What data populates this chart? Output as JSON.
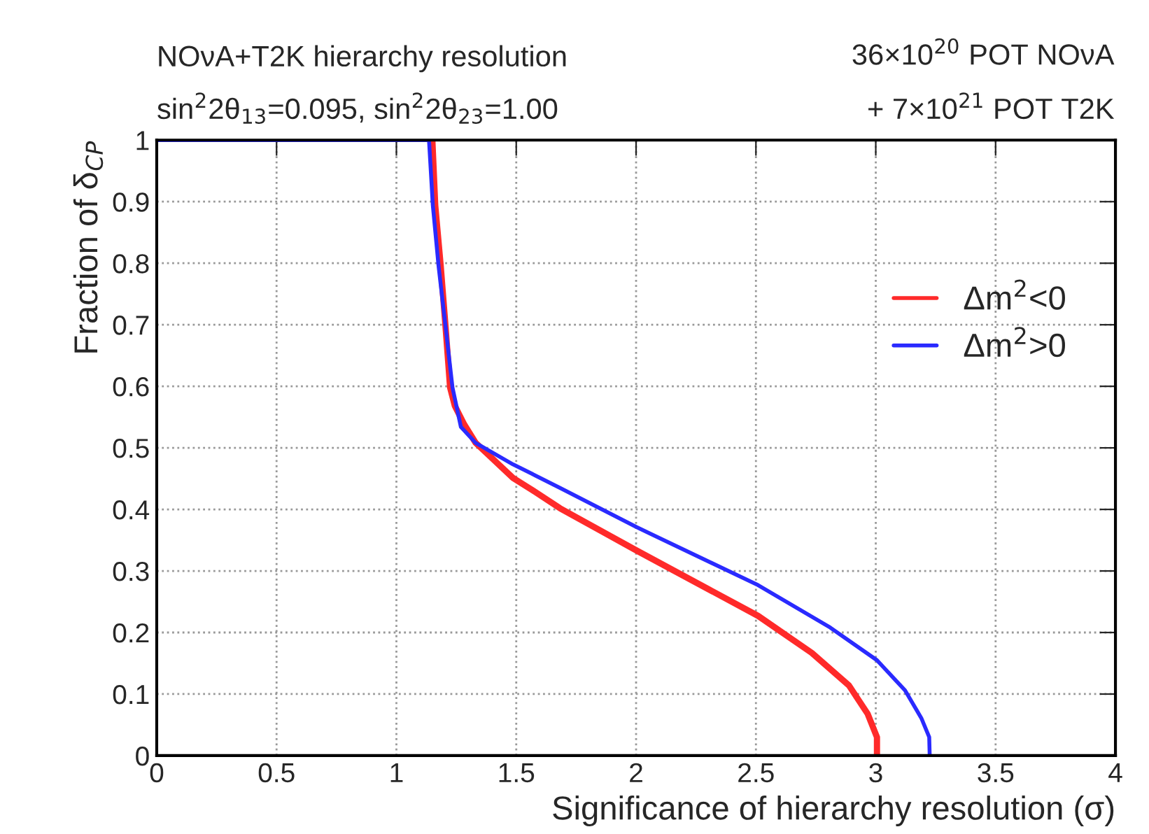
{
  "chart_data": {
    "type": "line",
    "title": "NOνA+T2K hierarchy resolution",
    "annotations": [
      "sin$^{2}$2θ$_{13}$=0.095, sin$^{2}$2θ$_{23}$=1.00",
      "36×10$^{20}$ POT NOνA",
      "+ 7×10$^{21}$ POT T2K"
    ],
    "xlabel": "Significance of hierarchy resolution (σ)",
    "ylabel": "Fraction of δ$_{CP}$",
    "series": [
      {
        "name": "Δm$^{2}$<0",
        "color": "#ff2a2a",
        "x": [
          1.15,
          1.162,
          1.185,
          1.205,
          1.224,
          1.244,
          1.283,
          1.331,
          1.487,
          1.565,
          1.682,
          2.003,
          2.509,
          2.733,
          2.888,
          2.966,
          3.005,
          3.005
        ],
        "values": [
          1.0,
          0.894,
          0.795,
          0.697,
          0.598,
          0.568,
          0.538,
          0.508,
          0.451,
          0.432,
          0.402,
          0.333,
          0.227,
          0.167,
          0.114,
          0.068,
          0.03,
          0.0
        ]
      },
      {
        "name": "Δm$^{2}$>0",
        "color": "#2a2aff",
        "x": [
          0.0,
          1.136,
          1.152,
          1.176,
          1.205,
          1.234,
          1.269,
          1.331,
          1.487,
          1.565,
          1.682,
          2.003,
          2.509,
          2.81,
          3.005,
          3.122,
          3.19,
          3.223,
          3.225
        ],
        "values": [
          1.0,
          1.0,
          0.894,
          0.795,
          0.697,
          0.598,
          0.534,
          0.508,
          0.473,
          0.458,
          0.435,
          0.371,
          0.277,
          0.208,
          0.155,
          0.106,
          0.061,
          0.03,
          0.0
        ]
      }
    ],
    "xlim": [
      0,
      4
    ],
    "ylim": [
      0,
      1
    ],
    "xticks": [
      0,
      0.5,
      1,
      1.5,
      2,
      2.5,
      3,
      3.5,
      4
    ],
    "yticks": [
      0,
      0.1,
      0.2,
      0.3,
      0.4,
      0.5,
      0.6,
      0.7,
      0.8,
      0.9,
      1
    ],
    "grid": true,
    "legend": "right",
    "line_style": "solid",
    "marker": "none"
  }
}
